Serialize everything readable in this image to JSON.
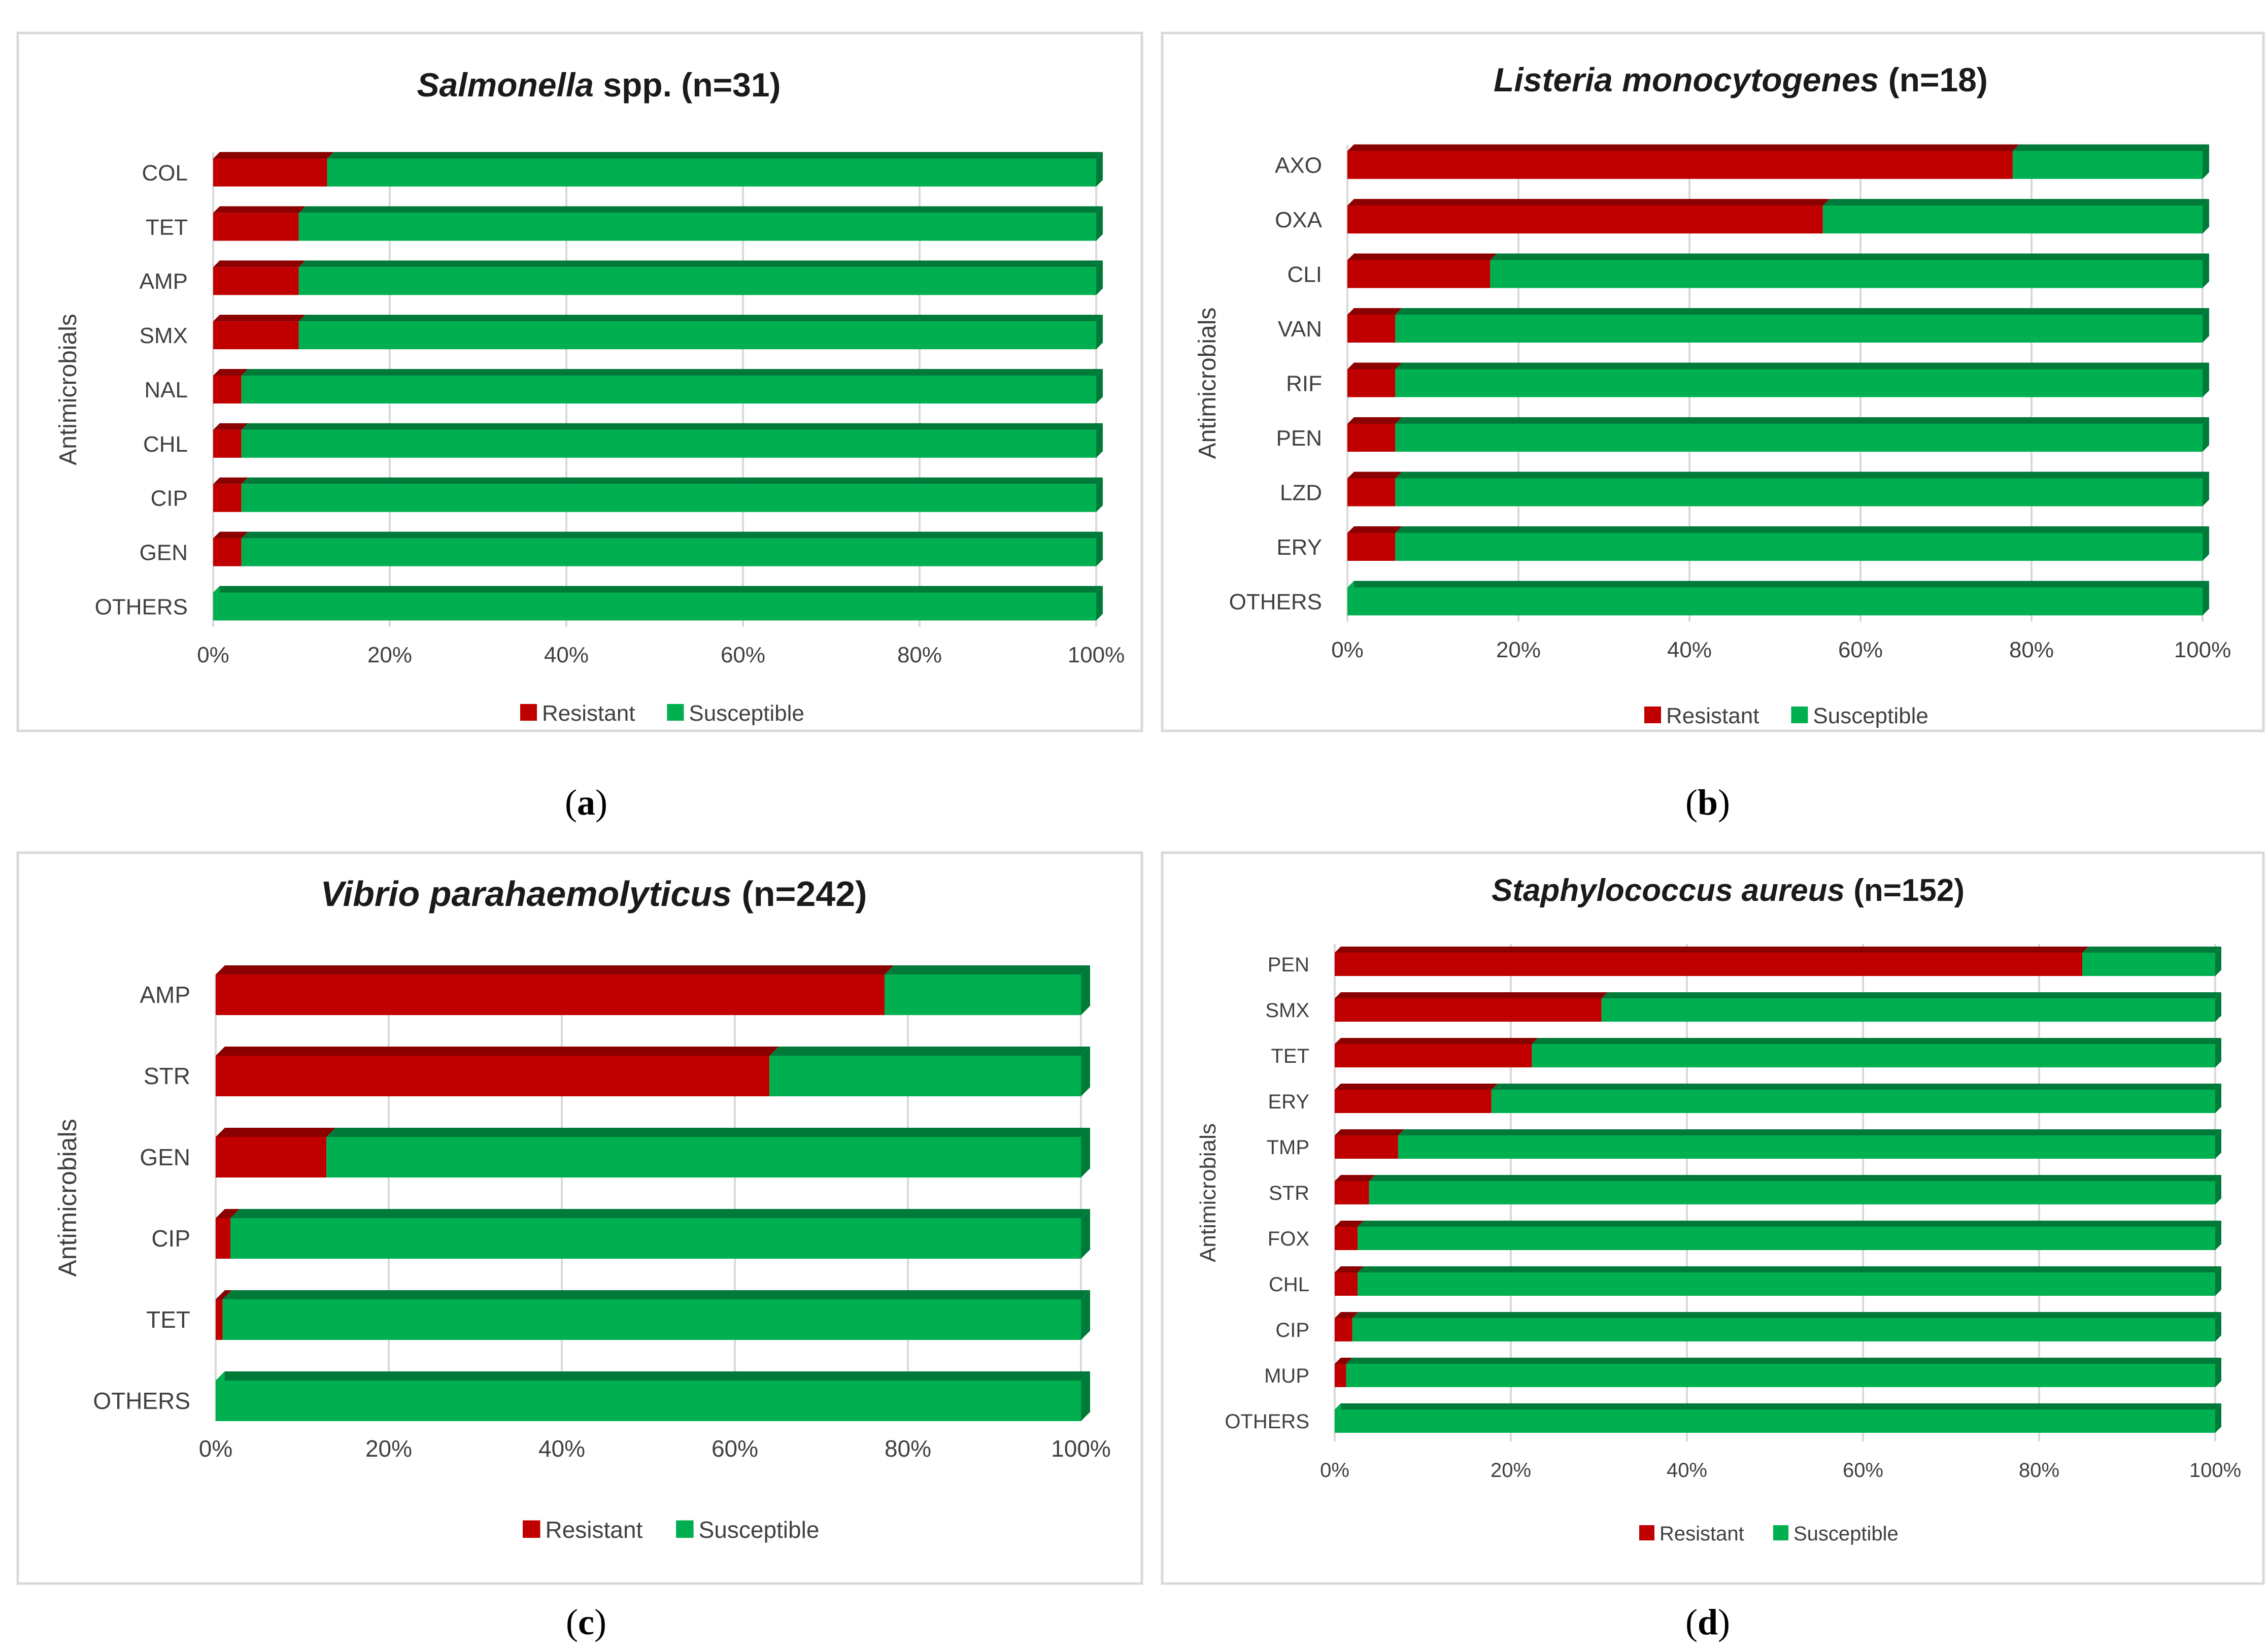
{
  "figure": {
    "colors": {
      "resistant": "#c00000",
      "resistant_dark": "#8b0000",
      "susceptible": "#00b050",
      "susceptible_dark": "#007a38",
      "grid": "#d9d9d9"
    }
  },
  "chart_data": [
    {
      "type": "bar",
      "orientation": "horizontal",
      "stacked": true,
      "panel_label": "a",
      "title_italic": "Salmonella",
      "title_rest": "spp. (n=31)",
      "ylabel": "Antimicrobials",
      "xlim": [
        0,
        100
      ],
      "xticks": [
        0,
        20,
        40,
        60,
        80,
        100
      ],
      "xtick_labels": [
        "0%",
        "20%",
        "40%",
        "60%",
        "80%",
        "100%"
      ],
      "legend": [
        "Resistant",
        "Susceptible"
      ],
      "legend_position": "bottom",
      "categories": [
        "COL",
        "TET",
        "AMP",
        "SMX",
        "NAL",
        "CHL",
        "CIP",
        "GEN",
        "OTHERS"
      ],
      "series": [
        {
          "name": "Resistant",
          "values": [
            12.9,
            9.7,
            9.7,
            9.7,
            3.2,
            3.2,
            3.2,
            3.2,
            0
          ]
        },
        {
          "name": "Susceptible",
          "values": [
            87.1,
            90.3,
            90.3,
            90.3,
            96.8,
            96.8,
            96.8,
            96.8,
            100
          ]
        }
      ]
    },
    {
      "type": "bar",
      "orientation": "horizontal",
      "stacked": true,
      "panel_label": "b",
      "title_italic": "Listeria monocytogenes",
      "title_rest": "(n=18)",
      "ylabel": "Antimicrobials",
      "xlim": [
        0,
        100
      ],
      "xticks": [
        0,
        20,
        40,
        60,
        80,
        100
      ],
      "xtick_labels": [
        "0%",
        "20%",
        "40%",
        "60%",
        "80%",
        "100%"
      ],
      "legend": [
        "Resistant",
        "Susceptible"
      ],
      "legend_position": "bottom",
      "categories": [
        "AXO",
        "OXA",
        "CLI",
        "VAN",
        "RIF",
        "PEN",
        "LZD",
        "ERY",
        "OTHERS"
      ],
      "series": [
        {
          "name": "Resistant",
          "values": [
            77.8,
            55.6,
            16.7,
            5.6,
            5.6,
            5.6,
            5.6,
            5.6,
            0
          ]
        },
        {
          "name": "Susceptible",
          "values": [
            22.2,
            44.4,
            83.3,
            94.4,
            94.4,
            94.4,
            94.4,
            94.4,
            100
          ]
        }
      ]
    },
    {
      "type": "bar",
      "orientation": "horizontal",
      "stacked": true,
      "panel_label": "c",
      "title_italic": "Vibrio parahaemolyticus",
      "title_rest": "(n=242)",
      "ylabel": "Antimicrobials",
      "xlim": [
        0,
        100
      ],
      "xticks": [
        0,
        20,
        40,
        60,
        80,
        100
      ],
      "xtick_labels": [
        "0%",
        "20%",
        "40%",
        "60%",
        "80%",
        "100%"
      ],
      "legend": [
        "Resistant",
        "Susceptible"
      ],
      "legend_position": "bottom",
      "categories": [
        "AMP",
        "STR",
        "GEN",
        "CIP",
        "TET",
        "OTHERS"
      ],
      "series": [
        {
          "name": "Resistant",
          "values": [
            77.3,
            64.0,
            12.8,
            1.7,
            0.8,
            0
          ]
        },
        {
          "name": "Susceptible",
          "values": [
            22.7,
            36.0,
            87.2,
            98.3,
            99.2,
            100
          ]
        }
      ]
    },
    {
      "type": "bar",
      "orientation": "horizontal",
      "stacked": true,
      "panel_label": "d",
      "title_italic": "Staphylococcus aureus",
      "title_rest": "(n=152)",
      "ylabel": "Antimicrobials",
      "xlim": [
        0,
        100
      ],
      "xticks": [
        0,
        20,
        40,
        60,
        80,
        100
      ],
      "xtick_labels": [
        "0%",
        "20%",
        "40%",
        "60%",
        "80%",
        "100%"
      ],
      "legend": [
        "Resistant",
        "Susceptible"
      ],
      "legend_position": "bottom",
      "categories": [
        "PEN",
        "SMX",
        "TET",
        "ERY",
        "TMP",
        "STR",
        "FOX",
        "CHL",
        "CIP",
        "MUP",
        "OTHERS"
      ],
      "series": [
        {
          "name": "Resistant",
          "values": [
            84.9,
            30.3,
            22.4,
            17.8,
            7.2,
            3.9,
            2.6,
            2.6,
            2.0,
            1.3,
            0
          ]
        },
        {
          "name": "Susceptible",
          "values": [
            15.1,
            69.7,
            77.6,
            82.2,
            92.8,
            96.1,
            97.4,
            97.4,
            98.0,
            98.7,
            100
          ]
        }
      ]
    }
  ]
}
